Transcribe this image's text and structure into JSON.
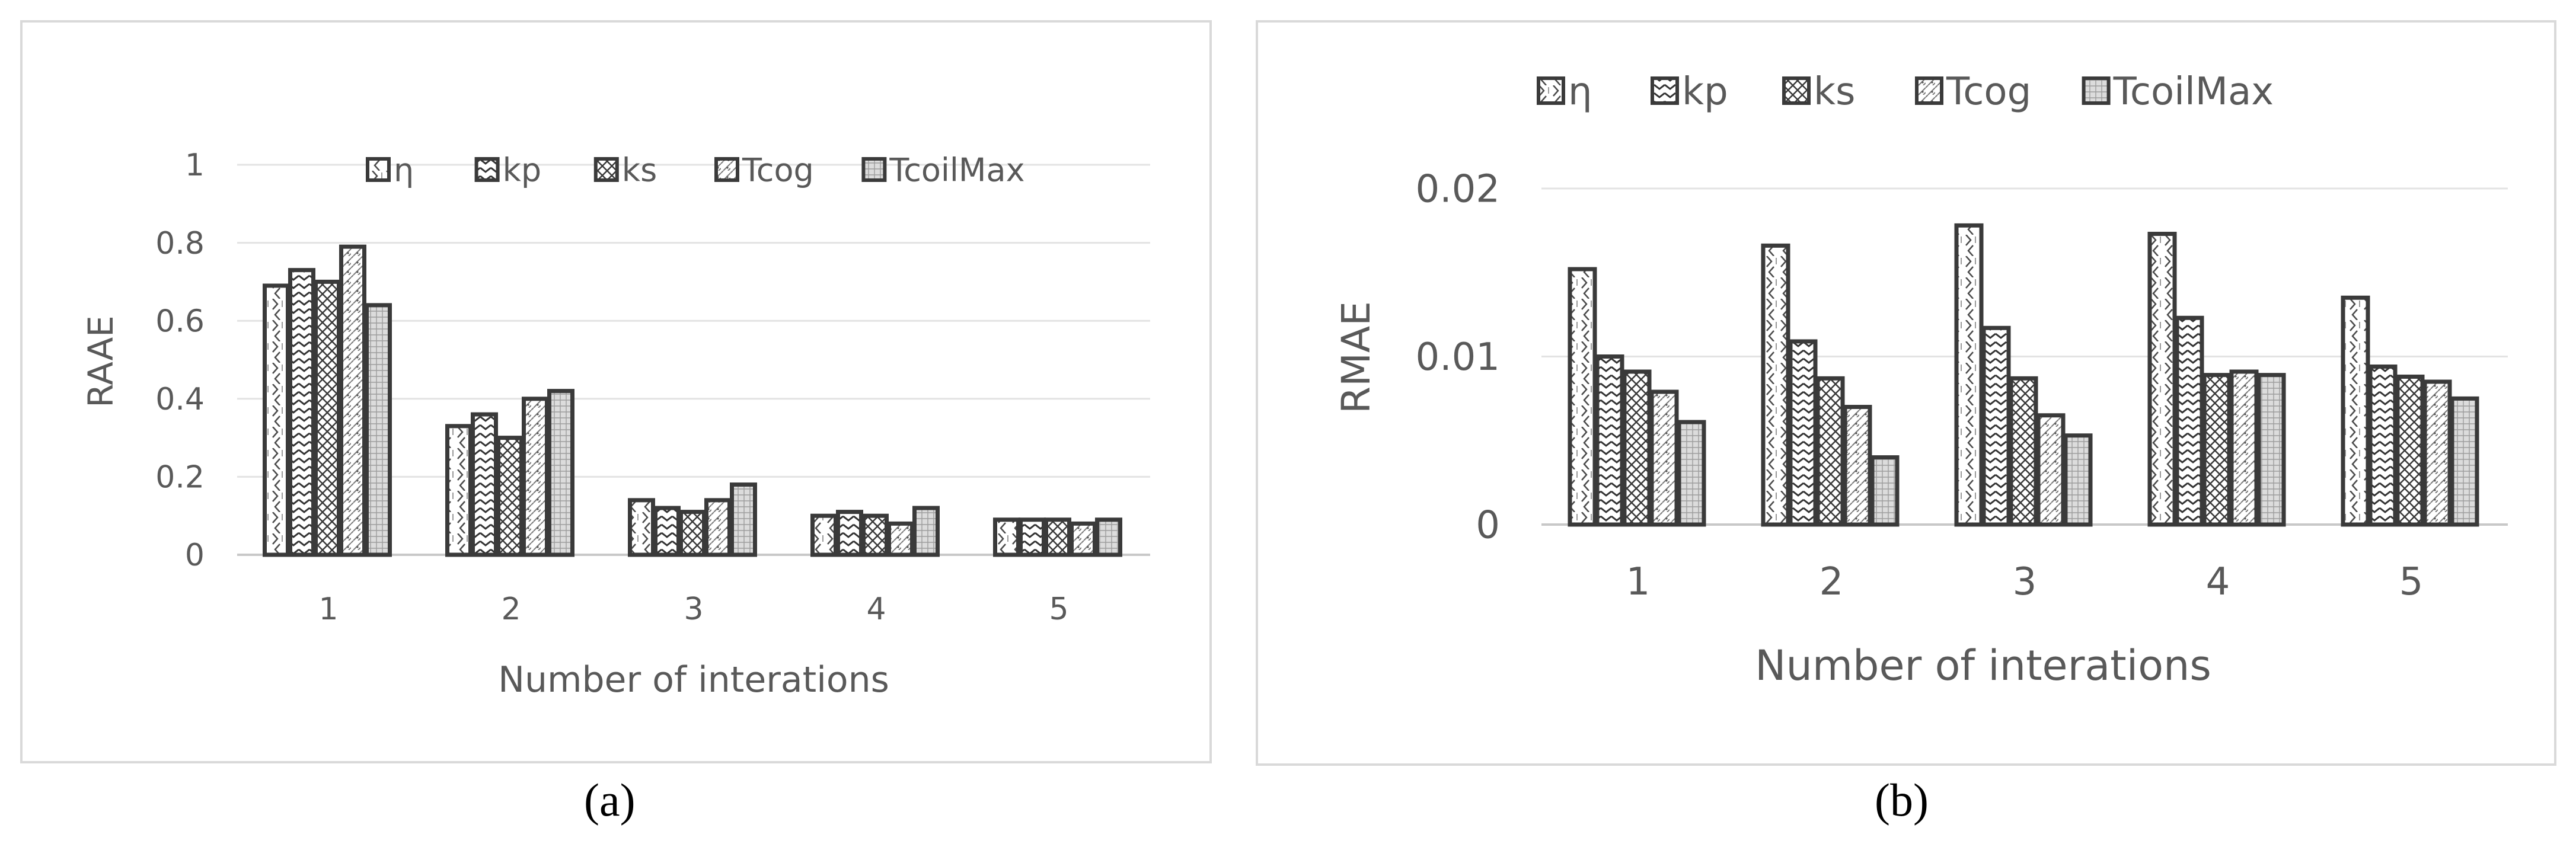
{
  "chart_data": [
    {
      "type": "bar",
      "caption": "(a)",
      "categories": [
        "1",
        "2",
        "3",
        "4",
        "5"
      ],
      "xlabel": "Number of interations",
      "ylabel": "RAAE",
      "ylim": [
        0,
        1
      ],
      "yticks": [
        "0",
        "0.2",
        "0.4",
        "0.6",
        "0.8",
        "1"
      ],
      "grid": true,
      "legend_position": "top",
      "series": [
        {
          "name": "η",
          "values": [
            0.69,
            0.33,
            0.14,
            0.1,
            0.09
          ]
        },
        {
          "name": "kp",
          "values": [
            0.73,
            0.36,
            0.12,
            0.11,
            0.09
          ]
        },
        {
          "name": "ks",
          "values": [
            0.7,
            0.3,
            0.11,
            0.1,
            0.09
          ]
        },
        {
          "name": "Tcog",
          "values": [
            0.79,
            0.4,
            0.14,
            0.08,
            0.08
          ]
        },
        {
          "name": "TcoilMax",
          "values": [
            0.64,
            0.42,
            0.18,
            0.12,
            0.09
          ]
        }
      ]
    },
    {
      "type": "bar",
      "caption": "(b)",
      "categories": [
        "1",
        "2",
        "3",
        "4",
        "5"
      ],
      "xlabel": "Number of interations",
      "ylabel": "RMAE",
      "ylim": [
        0,
        0.02
      ],
      "yticks": [
        "0",
        "0.01",
        "0.02"
      ],
      "grid": true,
      "legend_position": "top",
      "series": [
        {
          "name": "η",
          "values": [
            0.0152,
            0.0166,
            0.0178,
            0.0173,
            0.0135
          ]
        },
        {
          "name": "kp",
          "values": [
            0.01,
            0.0109,
            0.0117,
            0.0123,
            0.0094
          ]
        },
        {
          "name": "ks",
          "values": [
            0.0091,
            0.0087,
            0.0087,
            0.0089,
            0.0088
          ]
        },
        {
          "name": "Tcog",
          "values": [
            0.0079,
            0.007,
            0.0065,
            0.0091,
            0.0085
          ]
        },
        {
          "name": "TcoilMax",
          "values": [
            0.0061,
            0.004,
            0.0053,
            0.0089,
            0.0075
          ]
        }
      ]
    }
  ],
  "colors": {
    "bar_stroke": "#3a3a3a",
    "grid": "#e3e3e3",
    "axis": "#c8c8c8",
    "text": "#595959",
    "frame": "#d9d9d9"
  }
}
